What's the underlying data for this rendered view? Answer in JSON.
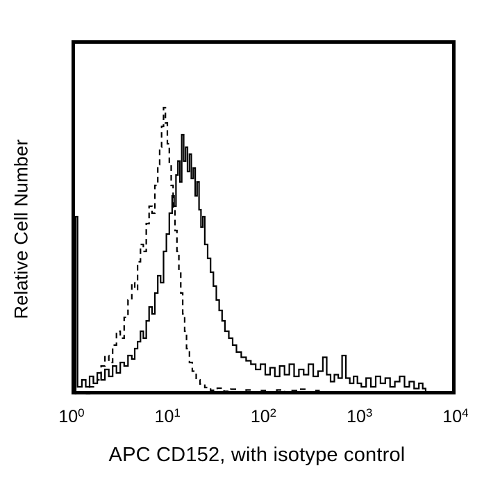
{
  "figure": {
    "background_color": "#ffffff",
    "ink_color": "#000000"
  },
  "chart_data": {
    "type": "line",
    "subtype": "flow-cytometry-histogram-overlay",
    "title": "",
    "xlabel": "APC CD152, with isotype control",
    "ylabel": "Relative Cell Number",
    "x_scale": "log10",
    "x_range_exponents": [
      0,
      4
    ],
    "x_tick_base": 10,
    "x_tick_exponents": [
      0,
      1,
      2,
      3,
      4
    ],
    "y_axis_ticks": "none",
    "ylim_relative": [
      0,
      1
    ],
    "grid": false,
    "legend_position": "none",
    "series": [
      {
        "name": "APC CD152",
        "line_style": "solid",
        "color": "#000000",
        "peak": {
          "x_log10": 1.13,
          "relative_height": 0.746
        },
        "points_log10x_relheight": [
          [
            0.015,
            0.0
          ],
          [
            0.025,
            0.51
          ],
          [
            0.04,
            0.51
          ],
          [
            0.045,
            0.02
          ],
          [
            0.09,
            0.04
          ],
          [
            0.13,
            0.02
          ],
          [
            0.17,
            0.05
          ],
          [
            0.21,
            0.03
          ],
          [
            0.25,
            0.06
          ],
          [
            0.29,
            0.04
          ],
          [
            0.33,
            0.07
          ],
          [
            0.37,
            0.05
          ],
          [
            0.41,
            0.08
          ],
          [
            0.45,
            0.06
          ],
          [
            0.49,
            0.09
          ],
          [
            0.53,
            0.08
          ],
          [
            0.57,
            0.11
          ],
          [
            0.61,
            0.1
          ],
          [
            0.64,
            0.13
          ],
          [
            0.67,
            0.15
          ],
          [
            0.7,
            0.18
          ],
          [
            0.73,
            0.16
          ],
          [
            0.76,
            0.21
          ],
          [
            0.79,
            0.25
          ],
          [
            0.82,
            0.23
          ],
          [
            0.85,
            0.29
          ],
          [
            0.88,
            0.34
          ],
          [
            0.91,
            0.32
          ],
          [
            0.94,
            0.41
          ],
          [
            0.97,
            0.46
          ],
          [
            1.0,
            0.52
          ],
          [
            1.03,
            0.57
          ],
          [
            1.05,
            0.54
          ],
          [
            1.07,
            0.63
          ],
          [
            1.09,
            0.67
          ],
          [
            1.11,
            0.61
          ],
          [
            1.13,
            0.746
          ],
          [
            1.15,
            0.67
          ],
          [
            1.17,
            0.71
          ],
          [
            1.19,
            0.64
          ],
          [
            1.21,
            0.69
          ],
          [
            1.23,
            0.62
          ],
          [
            1.25,
            0.65
          ],
          [
            1.27,
            0.57
          ],
          [
            1.29,
            0.61
          ],
          [
            1.31,
            0.53
          ],
          [
            1.33,
            0.48
          ],
          [
            1.35,
            0.51
          ],
          [
            1.37,
            0.43
          ],
          [
            1.4,
            0.39
          ],
          [
            1.43,
            0.35
          ],
          [
            1.46,
            0.31
          ],
          [
            1.49,
            0.27
          ],
          [
            1.52,
            0.24
          ],
          [
            1.55,
            0.21
          ],
          [
            1.58,
            0.18
          ],
          [
            1.62,
            0.16
          ],
          [
            1.66,
            0.14
          ],
          [
            1.7,
            0.12
          ],
          [
            1.75,
            0.105
          ],
          [
            1.8,
            0.095
          ],
          [
            1.85,
            0.085
          ],
          [
            1.9,
            0.07
          ],
          [
            1.95,
            0.085
          ],
          [
            2.0,
            0.055
          ],
          [
            2.05,
            0.075
          ],
          [
            2.1,
            0.05
          ],
          [
            2.15,
            0.08
          ],
          [
            2.2,
            0.055
          ],
          [
            2.25,
            0.085
          ],
          [
            2.3,
            0.05
          ],
          [
            2.35,
            0.07
          ],
          [
            2.4,
            0.055
          ],
          [
            2.45,
            0.085
          ],
          [
            2.5,
            0.05
          ],
          [
            2.55,
            0.065
          ],
          [
            2.6,
            0.105
          ],
          [
            2.64,
            0.055
          ],
          [
            2.68,
            0.035
          ],
          [
            2.72,
            0.055
          ],
          [
            2.76,
            0.045
          ],
          [
            2.8,
            0.11
          ],
          [
            2.84,
            0.045
          ],
          [
            2.88,
            0.03
          ],
          [
            2.92,
            0.05
          ],
          [
            2.96,
            0.03
          ],
          [
            3.0,
            0.02
          ],
          [
            3.05,
            0.045
          ],
          [
            3.1,
            0.02
          ],
          [
            3.15,
            0.05
          ],
          [
            3.2,
            0.03
          ],
          [
            3.25,
            0.045
          ],
          [
            3.3,
            0.02
          ],
          [
            3.35,
            0.035
          ],
          [
            3.4,
            0.05
          ],
          [
            3.45,
            0.02
          ],
          [
            3.5,
            0.035
          ],
          [
            3.55,
            0.015
          ],
          [
            3.6,
            0.03
          ],
          [
            3.64,
            0.015
          ],
          [
            3.67,
            0.0
          ]
        ]
      },
      {
        "name": "Isotype control",
        "line_style": "dashed",
        "color": "#000000",
        "peak": {
          "x_log10": 0.94,
          "relative_height": 0.824
        },
        "points_log10x_relheight": [
          [
            0.13,
            0.0
          ],
          [
            0.17,
            0.02
          ],
          [
            0.21,
            0.05
          ],
          [
            0.25,
            0.04
          ],
          [
            0.29,
            0.08
          ],
          [
            0.33,
            0.11
          ],
          [
            0.37,
            0.09
          ],
          [
            0.41,
            0.14
          ],
          [
            0.45,
            0.18
          ],
          [
            0.49,
            0.16
          ],
          [
            0.53,
            0.22
          ],
          [
            0.57,
            0.27
          ],
          [
            0.61,
            0.32
          ],
          [
            0.64,
            0.3
          ],
          [
            0.67,
            0.38
          ],
          [
            0.7,
            0.43
          ],
          [
            0.73,
            0.41
          ],
          [
            0.76,
            0.49
          ],
          [
            0.79,
            0.54
          ],
          [
            0.82,
            0.52
          ],
          [
            0.85,
            0.6
          ],
          [
            0.88,
            0.66
          ],
          [
            0.9,
            0.71
          ],
          [
            0.92,
            0.77
          ],
          [
            0.94,
            0.824
          ],
          [
            0.96,
            0.78
          ],
          [
            0.98,
            0.72
          ],
          [
            1.0,
            0.66
          ],
          [
            1.02,
            0.6
          ],
          [
            1.04,
            0.53
          ],
          [
            1.06,
            0.47
          ],
          [
            1.08,
            0.41
          ],
          [
            1.1,
            0.35
          ],
          [
            1.12,
            0.29
          ],
          [
            1.14,
            0.23
          ],
          [
            1.16,
            0.18
          ],
          [
            1.18,
            0.13
          ],
          [
            1.21,
            0.09
          ],
          [
            1.24,
            0.065
          ],
          [
            1.28,
            0.04
          ],
          [
            1.32,
            0.028
          ],
          [
            1.37,
            0.018
          ],
          [
            1.43,
            0.01
          ],
          [
            1.5,
            0.016
          ],
          [
            1.57,
            0.007
          ],
          [
            1.64,
            0.013
          ],
          [
            1.72,
            0.005
          ],
          [
            1.8,
            0.011
          ],
          [
            1.88,
            0.004
          ],
          [
            1.96,
            0.009
          ],
          [
            2.04,
            0.004
          ],
          [
            2.12,
            0.011
          ],
          [
            2.2,
            0.005
          ],
          [
            2.28,
            0.009
          ],
          [
            2.36,
            0.013
          ],
          [
            2.44,
            0.005
          ],
          [
            2.5,
            0.009
          ],
          [
            2.56,
            0.0
          ]
        ]
      }
    ]
  }
}
